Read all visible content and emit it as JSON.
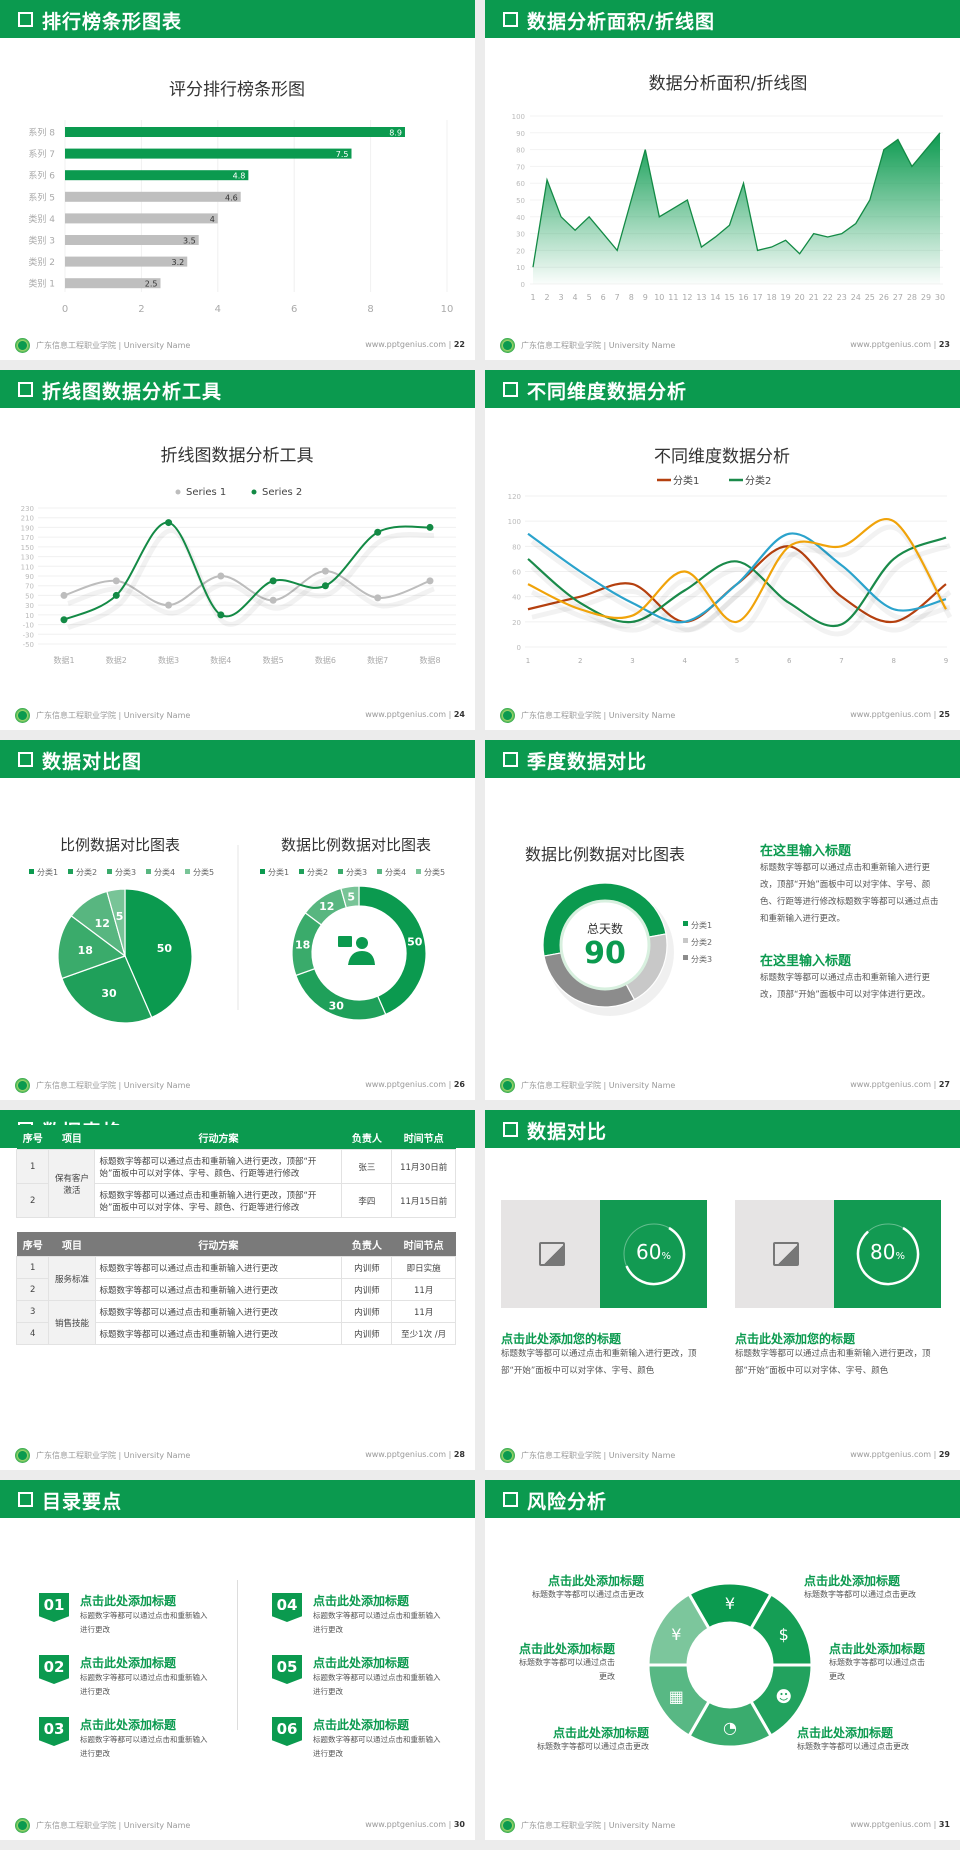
{
  "footer": {
    "school": "广东信息工程职业学院 | University Name",
    "site": "www.pptgenius.com"
  },
  "colors": {
    "brand": "#0b9a4f",
    "gray_bar": "#bfbfbf"
  },
  "slides": [
    {
      "title": "排行榜条形图表",
      "page": "22"
    },
    {
      "title": "数据分析面积/折线图",
      "page": "23"
    },
    {
      "title": "折线图数据分析工具",
      "page": "24"
    },
    {
      "title": "不同维度数据分析",
      "page": "25"
    },
    {
      "title": "数据对比图",
      "page": "26"
    },
    {
      "title": "季度数据对比",
      "page": "27"
    },
    {
      "title": "数据表格",
      "page": "28"
    },
    {
      "title": "数据对比",
      "page": "29"
    },
    {
      "title": "目录要点",
      "page": "30"
    },
    {
      "title": "风险分析",
      "page": "31"
    }
  ],
  "chart_data": [
    {
      "type": "bar",
      "orientation": "horizontal",
      "title": "评分排行榜条形图",
      "categories": [
        "系列 8",
        "系列 7",
        "系列 6",
        "系列 5",
        "类别 4",
        "类别 3",
        "类别 2",
        "类别 1"
      ],
      "values": [
        8.9,
        7.5,
        4.8,
        4.6,
        4,
        3.5,
        3.2,
        2.5
      ],
      "colors": [
        "#0b9a4f",
        "#0b9a4f",
        "#0b9a4f",
        "#bfbfbf",
        "#bfbfbf",
        "#bfbfbf",
        "#bfbfbf",
        "#bfbfbf"
      ],
      "xlim": [
        0,
        10
      ],
      "xticks": [
        "0",
        "2",
        "4",
        "6",
        "8",
        "10"
      ],
      "grid": true
    },
    {
      "type": "area",
      "title": "数据分析面积/折线图",
      "x": [
        1,
        2,
        3,
        4,
        5,
        6,
        7,
        8,
        9,
        10,
        11,
        12,
        13,
        14,
        15,
        16,
        17,
        18,
        19,
        20,
        21,
        22,
        23,
        24,
        25,
        26,
        27,
        28,
        29,
        30
      ],
      "values": [
        10,
        62,
        40,
        32,
        40,
        30,
        20,
        50,
        80,
        40,
        45,
        50,
        22,
        28,
        35,
        60,
        20,
        22,
        26,
        18,
        30,
        28,
        30,
        36,
        50,
        80,
        86,
        70,
        80,
        90
      ],
      "ylim": [
        0,
        100
      ],
      "yticks": [
        "0",
        "10",
        "20",
        "30",
        "40",
        "50",
        "60",
        "70",
        "80",
        "90",
        "100"
      ],
      "grid": true
    },
    {
      "type": "line",
      "title": "折线图数据分析工具",
      "smooth": true,
      "legend": "top",
      "categories": [
        "数据1",
        "数据2",
        "数据3",
        "数据4",
        "数据5",
        "数据6",
        "数据7",
        "数据8"
      ],
      "series": [
        {
          "name": "Series 1",
          "color": "#bdbdbd",
          "values": [
            50,
            80,
            30,
            90,
            40,
            100,
            45,
            80
          ]
        },
        {
          "name": "Series 2",
          "color": "#138a45",
          "values": [
            0,
            50,
            200,
            10,
            80,
            70,
            180,
            190
          ]
        }
      ],
      "ylim": [
        -50,
        230
      ],
      "yticks": [
        "-50",
        "-30",
        "-10",
        "10",
        "30",
        "50",
        "70",
        "90",
        "110",
        "130",
        "150",
        "170",
        "190",
        "210",
        "230"
      ]
    },
    {
      "type": "line",
      "title": "不同维度数据分析",
      "smooth": true,
      "legend": "top",
      "categories": [
        "1",
        "2",
        "3",
        "4",
        "5",
        "6",
        "7",
        "8",
        "9"
      ],
      "series": [
        {
          "name": "分类1",
          "color": "#b5400f",
          "values": [
            30,
            40,
            50,
            20,
            50,
            80,
            40,
            20,
            50
          ]
        },
        {
          "name": "分类2",
          "color": "#1a8a4a",
          "values": [
            70,
            35,
            20,
            45,
            68,
            35,
            18,
            70,
            87
          ]
        },
        {
          "color": "#2ba3cc",
          "values": [
            90,
            60,
            35,
            20,
            50,
            90,
            65,
            30,
            38
          ]
        },
        {
          "color": "#f0a30a",
          "values": [
            50,
            30,
            25,
            60,
            20,
            80,
            80,
            100,
            30
          ]
        }
      ],
      "ylim": [
        0,
        120
      ],
      "yticks": [
        "0",
        "20",
        "40",
        "60",
        "80",
        "100",
        "120"
      ]
    },
    {
      "type": "pie",
      "title": "比例数据对比图表",
      "legend": "top",
      "categories": [
        "分类1",
        "分类2",
        "分类3",
        "分类4",
        "分类5"
      ],
      "values": [
        50,
        30,
        18,
        12,
        5
      ],
      "colors": [
        "#0b9a4f",
        "#1fa05a",
        "#3aab6b",
        "#58b680",
        "#78c497"
      ]
    },
    {
      "type": "pie",
      "variant": "donut",
      "title": "数据比例数据对比图表",
      "legend": "top",
      "categories": [
        "分类1",
        "分类2",
        "分类3",
        "分类4",
        "分类5"
      ],
      "values": [
        50,
        30,
        18,
        12,
        5
      ],
      "colors": [
        "#0b9a4f",
        "#1fa05a",
        "#3aab6b",
        "#58b680",
        "#78c497"
      ],
      "center_icon": "consultant-icon"
    },
    {
      "type": "pie",
      "variant": "donut",
      "title": "数据比例数据对比图表",
      "legend": "right",
      "categories": [
        "分类1",
        "分类2",
        "分类3"
      ],
      "values": [
        50,
        20,
        30
      ],
      "colors": [
        "#0b9a4f",
        "#c8c8c8",
        "#8c8c8c"
      ],
      "center_label": "总天数",
      "center_value": "90"
    }
  ],
  "quarter": {
    "blocks": [
      {
        "heading": "在这里输入标题",
        "text": "标题数字等都可以通过点击和重新输入进行更改，顶部“开始”面板中可以对字体、字号、颜色、行距等进行修改标题数字等都可以通过点击和重新输入进行更改。"
      },
      {
        "heading": "在这里输入标题",
        "text": "标题数字等都可以通过点击和重新输入进行更改，顶部“开始”面板中可以对字体进行更改。"
      }
    ]
  },
  "tables": [
    {
      "header": [
        "序号",
        "项目",
        "行动方案",
        "负责人",
        "时间节点"
      ],
      "header_color": "#0b9a4f",
      "group_labels": [
        "保有客户激活"
      ],
      "rows": [
        [
          "1",
          "标题数字等都可以通过点击和重新输入进行更改，顶部“开始”面板中可以对字体、字号、颜色、行距等进行修改",
          "张三",
          "11月30日前"
        ],
        [
          "2",
          "标题数字等都可以通过点击和重新输入进行更改，顶部“开始”面板中可以对字体、字号、颜色、行距等进行修改",
          "李四",
          "11月15日前"
        ]
      ]
    },
    {
      "header": [
        "序号",
        "项目",
        "行动方案",
        "负责人",
        "时间节点"
      ],
      "header_color": "#7a7a7a",
      "group_labels": [
        "服务标准",
        "销售技能"
      ],
      "rows": [
        [
          "1",
          "标题数字等都可以通过点击和重新输入进行更改",
          "内训师",
          "即日实施"
        ],
        [
          "2",
          "标题数字等都可以通过点击和重新输入进行更改",
          "内训师",
          "11月"
        ],
        [
          "3",
          "标题数字等都可以通过点击和重新输入进行更改",
          "内训师",
          "11月"
        ],
        [
          "4",
          "标题数字等都可以通过点击和重新输入进行更改",
          "内训师",
          "至少1次 /月"
        ]
      ]
    }
  ],
  "compare": [
    {
      "percent": 60,
      "value": "60",
      "unit": "%",
      "heading": "点击此处添加您的标题",
      "text": "标题数字等都可以通过点击和重新输入进行更改，顶部“开始”面板中可以对字体、字号、颜色"
    },
    {
      "percent": 80,
      "value": "80",
      "unit": "%",
      "heading": "点击此处添加您的标题",
      "text": "标题数字等都可以通过点击和重新输入进行更改，顶部“开始”面板中可以对字体、字号、颜色"
    }
  ],
  "toc": [
    {
      "num": "01",
      "heading": "点击此处添加标题",
      "text": "标题数字等都可以通过点击和重新输入进行更改"
    },
    {
      "num": "02",
      "heading": "点击此处添加标题",
      "text": "标题数字等都可以通过点击和重新输入进行更改"
    },
    {
      "num": "03",
      "heading": "点击此处添加标题",
      "text": "标题数字等都可以通过点击和重新输入进行更改"
    },
    {
      "num": "04",
      "heading": "点击此处添加标题",
      "text": "标题数字等都可以通过点击和重新输入进行更改"
    },
    {
      "num": "05",
      "heading": "点击此处添加标题",
      "text": "标题数字等都可以通过点击和重新输入进行更改"
    },
    {
      "num": "06",
      "heading": "点击此处添加标题",
      "text": "标题数字等都可以通过点击和重新输入进行更改"
    }
  ],
  "risk": {
    "items": [
      {
        "heading": "点击此处添加标题",
        "text": "标题数字等都可以通过点击更改"
      },
      {
        "heading": "点击此处添加标题",
        "text": "标题数字等都可以通过点击更改"
      },
      {
        "heading": "点击此处添加标题",
        "text": "标题数字等都可以通过点击更改"
      },
      {
        "heading": "点击此处添加标题",
        "text": "标题数字等都可以通过点击更改"
      },
      {
        "heading": "点击此处添加标题",
        "text": "标题数字等都可以通过点击更改"
      },
      {
        "heading": "点击此处添加标题",
        "text": "标题数字等都可以通过点击更改"
      }
    ],
    "icons": [
      "money-bag-icon",
      "coins-icon",
      "users-icon",
      "pie-chart-icon",
      "building-icon",
      "hand-money-icon"
    ]
  }
}
